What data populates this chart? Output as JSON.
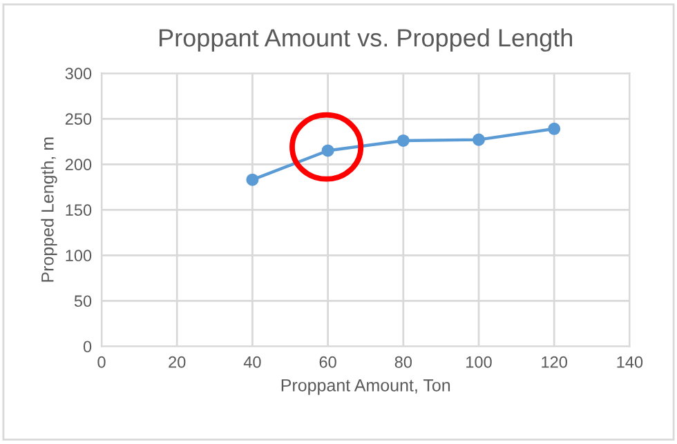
{
  "chart_data": {
    "type": "line",
    "title": "Proppant Amount vs. Propped Length",
    "xlabel": "Proppant Amount, Ton",
    "ylabel": "Propped Length, m",
    "x": [
      40,
      60,
      80,
      100,
      120
    ],
    "series": [
      {
        "color": "#5b9bd5",
        "values": [
          183,
          215,
          226,
          227,
          239
        ]
      }
    ],
    "xlim": [
      0,
      140
    ],
    "xticks": [
      0,
      20,
      40,
      60,
      80,
      100,
      120,
      140
    ],
    "ylim": [
      0,
      300
    ],
    "yticks": [
      0,
      50,
      100,
      150,
      200,
      250,
      300
    ],
    "grid": true,
    "marker": "circle",
    "line_style": "solid",
    "legend": false
  }
}
